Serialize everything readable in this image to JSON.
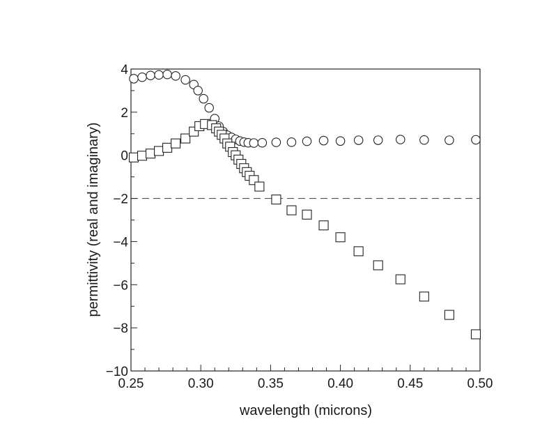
{
  "chart_data": {
    "type": "scatter",
    "title": "",
    "xlabel": "wavelength (microns)",
    "ylabel": "permittivity (real and imaginary)",
    "xlim": [
      0.25,
      0.5
    ],
    "ylim": [
      -10,
      4
    ],
    "x_ticks": [
      0.25,
      0.3,
      0.35,
      0.4,
      0.45,
      0.5
    ],
    "x_tick_labels": [
      "0.25",
      "0.30",
      "0.35",
      "0.40",
      "0.45",
      "0.50"
    ],
    "y_ticks": [
      4,
      2,
      0,
      -2,
      -4,
      -6,
      -8,
      -10
    ],
    "y_tick_labels": [
      "4",
      "2",
      "0",
      "−2",
      "−4",
      "−6",
      "−8",
      "−10"
    ],
    "reference_line": {
      "y": -2,
      "style": "dashed"
    },
    "grid": false,
    "legend": "none",
    "series": [
      {
        "marker": "circle",
        "points": [
          [
            0.252,
            3.55
          ],
          [
            0.258,
            3.62
          ],
          [
            0.264,
            3.7
          ],
          [
            0.27,
            3.73
          ],
          [
            0.276,
            3.75
          ],
          [
            0.282,
            3.68
          ],
          [
            0.289,
            3.5
          ],
          [
            0.295,
            3.28
          ],
          [
            0.298,
            3.0
          ],
          [
            0.302,
            2.62
          ],
          [
            0.306,
            2.2
          ],
          [
            0.31,
            1.7
          ],
          [
            0.313,
            1.35
          ],
          [
            0.316,
            1.1
          ],
          [
            0.319,
            0.93
          ],
          [
            0.322,
            0.83
          ],
          [
            0.325,
            0.74
          ],
          [
            0.328,
            0.66
          ],
          [
            0.331,
            0.61
          ],
          [
            0.334,
            0.58
          ],
          [
            0.338,
            0.57
          ],
          [
            0.344,
            0.58
          ],
          [
            0.354,
            0.6
          ],
          [
            0.365,
            0.61
          ],
          [
            0.376,
            0.65
          ],
          [
            0.388,
            0.68
          ],
          [
            0.4,
            0.66
          ],
          [
            0.413,
            0.7
          ],
          [
            0.427,
            0.7
          ],
          [
            0.443,
            0.73
          ],
          [
            0.46,
            0.71
          ],
          [
            0.478,
            0.7
          ],
          [
            0.497,
            0.72
          ]
        ]
      },
      {
        "marker": "square",
        "points": [
          [
            0.252,
            -0.1
          ],
          [
            0.258,
            -0.02
          ],
          [
            0.264,
            0.08
          ],
          [
            0.27,
            0.2
          ],
          [
            0.276,
            0.35
          ],
          [
            0.282,
            0.55
          ],
          [
            0.289,
            0.78
          ],
          [
            0.295,
            1.1
          ],
          [
            0.299,
            1.35
          ],
          [
            0.303,
            1.45
          ],
          [
            0.308,
            1.4
          ],
          [
            0.311,
            1.25
          ],
          [
            0.313,
            1.1
          ],
          [
            0.315,
            0.95
          ],
          [
            0.317,
            0.78
          ],
          [
            0.319,
            0.55
          ],
          [
            0.321,
            0.4
          ],
          [
            0.323,
            0.15
          ],
          [
            0.325,
            0.0
          ],
          [
            0.327,
            -0.2
          ],
          [
            0.329,
            -0.4
          ],
          [
            0.331,
            -0.6
          ],
          [
            0.333,
            -0.78
          ],
          [
            0.335,
            -0.95
          ],
          [
            0.338,
            -1.15
          ],
          [
            0.342,
            -1.45
          ],
          [
            0.354,
            -2.05
          ],
          [
            0.365,
            -2.55
          ],
          [
            0.376,
            -2.75
          ],
          [
            0.388,
            -3.25
          ],
          [
            0.4,
            -3.8
          ],
          [
            0.413,
            -4.45
          ],
          [
            0.427,
            -5.1
          ],
          [
            0.443,
            -5.75
          ],
          [
            0.46,
            -6.55
          ],
          [
            0.478,
            -7.4
          ],
          [
            0.497,
            -8.3
          ]
        ]
      }
    ]
  }
}
